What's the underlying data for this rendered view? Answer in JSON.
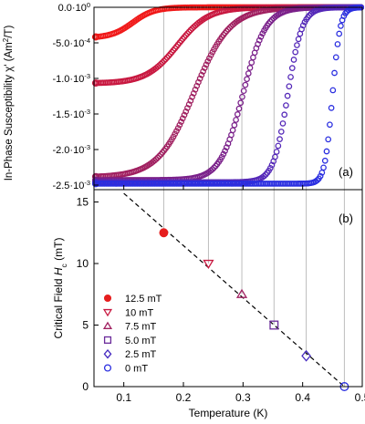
{
  "chart_data": [
    {
      "type": "scatter",
      "panel_label": "(a)",
      "xlim": [
        0.05,
        0.5
      ],
      "ylim": [
        -0.0025,
        0.0
      ],
      "ylabel_parts": [
        "In-Phase Susceptibility χ' (Am",
        "2",
        "/T)"
      ],
      "yticks": [
        {
          "v": 0.0,
          "label": "0.0·10",
          "exp": "0"
        },
        {
          "v": -0.0005,
          "label": "-5.0·10",
          "exp": "-4"
        },
        {
          "v": -0.001,
          "label": "-1.0·10",
          "exp": "-3"
        },
        {
          "v": -0.0015,
          "label": "-1.5·10",
          "exp": "-3"
        },
        {
          "v": -0.002,
          "label": "-2.0·10",
          "exp": "-3"
        },
        {
          "v": -0.0025,
          "label": "-2.5·10",
          "exp": "-3"
        }
      ],
      "series": [
        {
          "field": 12.5,
          "color": "#f01818",
          "low": -0.00043,
          "tc": 0.115,
          "w": 0.018
        },
        {
          "field": 10,
          "color": "#c81840",
          "low": -0.00107,
          "tc": 0.19,
          "w": 0.026
        },
        {
          "field": 7.5,
          "color": "#a02060",
          "low": -0.00239,
          "tc": 0.218,
          "w": 0.03
        },
        {
          "field": 5.0,
          "color": "#7a208a",
          "low": -0.00243,
          "tc": 0.3,
          "w": 0.019
        },
        {
          "field": 2.5,
          "color": "#5428b8",
          "low": -0.00246,
          "tc": 0.375,
          "w": 0.012
        },
        {
          "field": 0,
          "color": "#2a2ee0",
          "low": -0.00248,
          "tc": 0.45,
          "w": 0.0065
        }
      ]
    },
    {
      "type": "scatter",
      "panel_label": "(b)",
      "xlabel": "Temperature (K)",
      "ylabel_main": "Critical Field ",
      "ylabel_sym": "H",
      "ylabel_sub": "c",
      "ylabel_unit": " (mT)",
      "xlim": [
        0.05,
        0.5
      ],
      "ylim": [
        0,
        16
      ],
      "xticks": [
        "0.1",
        "0.2",
        "0.3",
        "0.4",
        "0.5"
      ],
      "yticks": [
        "0",
        "5",
        "10",
        "15"
      ],
      "fit_line": {
        "x": [
          0.1,
          0.47
        ],
        "y": [
          15.7,
          0
        ]
      },
      "points": [
        {
          "x": 0.167,
          "y": 12.5,
          "marker": "filled-circle",
          "label": "12.5 mT",
          "color": "#e61e1e"
        },
        {
          "x": 0.242,
          "y": 10.0,
          "marker": "triangle-down",
          "label": "10 mT",
          "color": "#c81840"
        },
        {
          "x": 0.298,
          "y": 7.5,
          "marker": "triangle-up",
          "label": "7.5 mT",
          "color": "#a02060"
        },
        {
          "x": 0.352,
          "y": 5.0,
          "marker": "square",
          "label": "5.0 mT",
          "color": "#6a2a9a"
        },
        {
          "x": 0.406,
          "y": 2.5,
          "marker": "diamond",
          "label": "2.5 mT",
          "color": "#4428c0"
        },
        {
          "x": 0.47,
          "y": 0.0,
          "marker": "circle",
          "label": "0 mT",
          "color": "#2a2ee0"
        }
      ]
    }
  ]
}
